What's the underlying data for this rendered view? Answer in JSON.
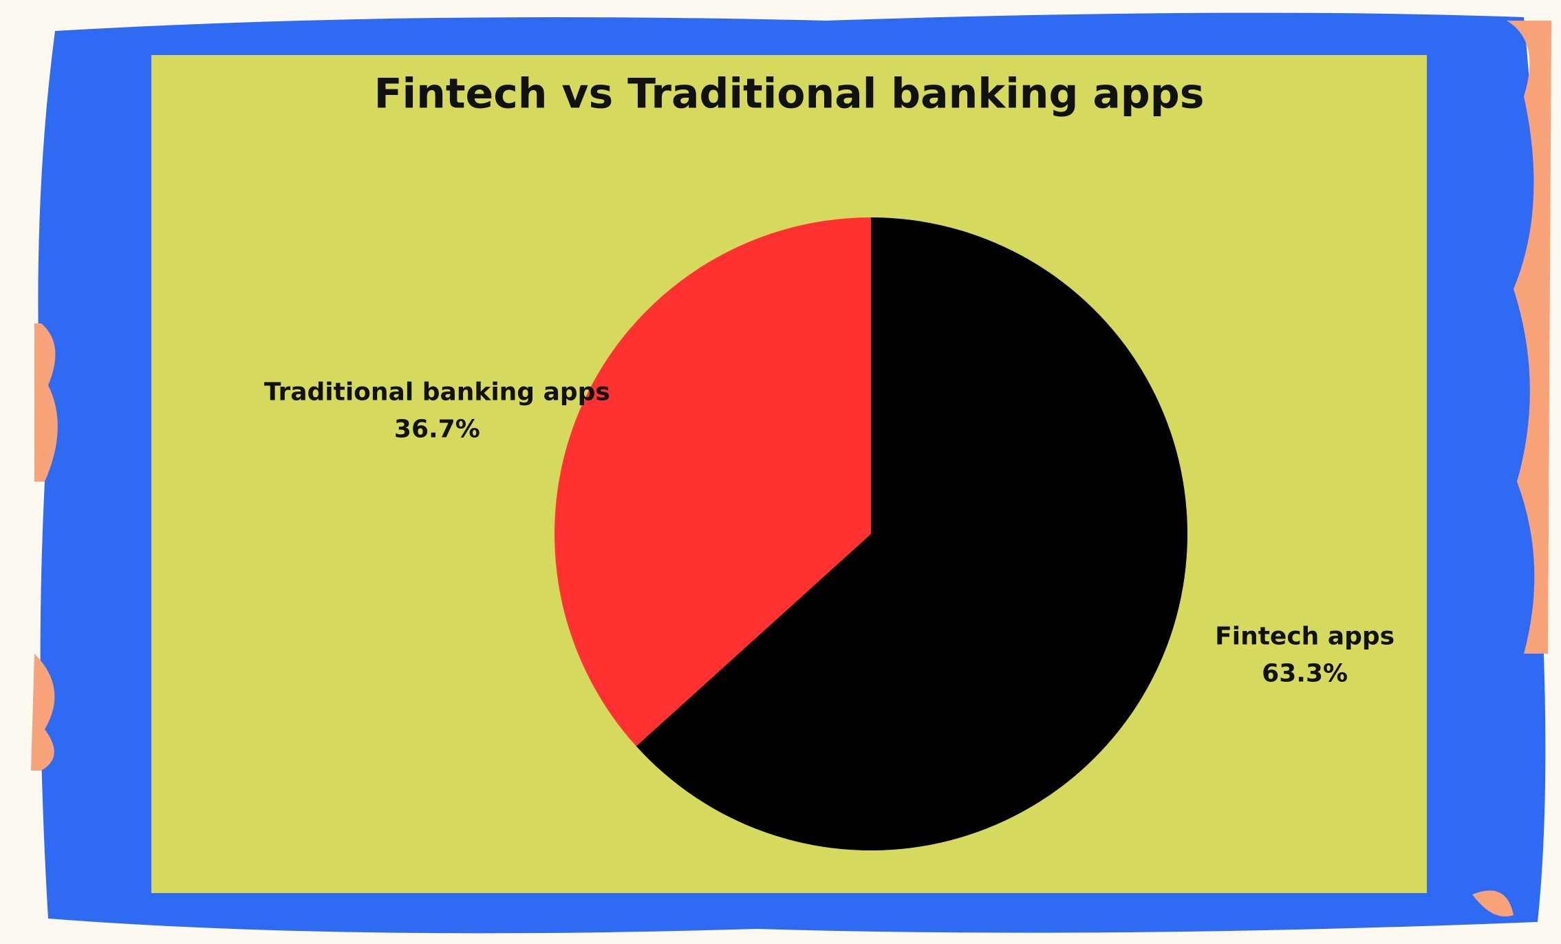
{
  "chart_data": {
    "type": "pie",
    "title": "Fintech vs Traditional banking apps",
    "categories": [
      "Fintech apps",
      "Traditional banking apps"
    ],
    "values": [
      63.3,
      36.7
    ],
    "value_labels": [
      "63.3%",
      "36.7%"
    ],
    "colors": [
      "#000000",
      "#ff3131"
    ]
  }
}
